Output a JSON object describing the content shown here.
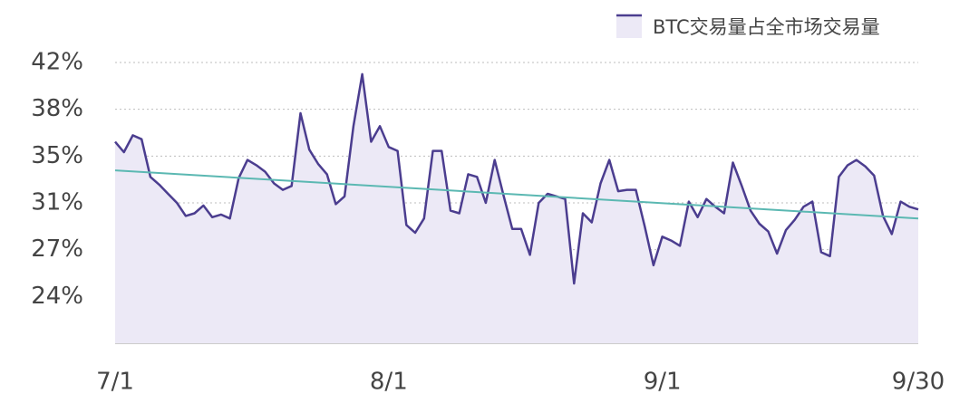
{
  "chart_data": {
    "type": "line",
    "categories": [
      "7/1",
      null,
      null,
      null,
      null,
      null,
      null,
      null,
      null,
      null,
      null,
      null,
      null,
      null,
      null,
      null,
      null,
      null,
      null,
      null,
      null,
      null,
      null,
      null,
      null,
      null,
      null,
      null,
      null,
      null,
      null,
      "8/1",
      null,
      null,
      null,
      null,
      null,
      null,
      null,
      null,
      null,
      null,
      null,
      null,
      null,
      null,
      null,
      null,
      null,
      null,
      null,
      null,
      null,
      null,
      null,
      null,
      null,
      null,
      null,
      null,
      null,
      null,
      "9/1",
      null,
      null,
      null,
      null,
      null,
      null,
      null,
      null,
      null,
      null,
      null,
      null,
      null,
      null,
      null,
      null,
      null,
      null,
      null,
      null,
      null,
      null,
      null,
      null,
      null,
      null,
      null,
      null,
      "9/30"
    ],
    "series": [
      {
        "name": "BTC交易量占全市场交易量",
        "color": "#4b3d8f",
        "fill": "#ece9f6",
        "values": [
          35.7,
          34.9,
          36.2,
          35.9,
          33.0,
          32.4,
          31.7,
          31.0,
          30.0,
          30.2,
          30.8,
          29.9,
          30.1,
          29.8,
          32.9,
          34.3,
          33.9,
          33.4,
          32.5,
          32.0,
          32.3,
          37.9,
          35.1,
          34.0,
          33.2,
          30.9,
          31.5,
          36.9,
          40.9,
          35.7,
          36.9,
          35.3,
          35.0,
          29.3,
          28.7,
          29.8,
          35.0,
          35.0,
          30.4,
          30.2,
          33.2,
          33.0,
          31.0,
          34.3,
          31.6,
          29.0,
          29.0,
          27.0,
          31.0,
          31.7,
          31.5,
          31.3,
          24.8,
          30.2,
          29.5,
          32.5,
          34.3,
          31.9,
          32.0,
          32.0,
          29.2,
          26.2,
          28.4,
          28.1,
          27.7,
          31.1,
          29.9,
          31.3,
          30.7,
          30.2,
          34.1,
          32.3,
          30.4,
          29.4,
          28.8,
          27.1,
          28.9,
          29.7,
          30.7,
          31.1,
          27.2,
          26.9,
          33.0,
          33.9,
          34.3,
          33.8,
          33.1,
          30.0,
          28.6,
          31.1,
          30.7,
          30.5
        ]
      }
    ],
    "trend_line": {
      "start": 33.5,
      "end": 29.8,
      "color": "#5bb8b2"
    },
    "ylim": [
      20.2,
      41.8
    ],
    "yticks": [
      {
        "value": 23.8,
        "label": "24%"
      },
      {
        "value": 27.4,
        "label": "27%"
      },
      {
        "value": 31.0,
        "label": "31%"
      },
      {
        "value": 34.6,
        "label": "35%"
      },
      {
        "value": 38.2,
        "label": "38%"
      },
      {
        "value": 41.8,
        "label": "42%"
      }
    ],
    "grid": true,
    "legend": "top-right"
  }
}
